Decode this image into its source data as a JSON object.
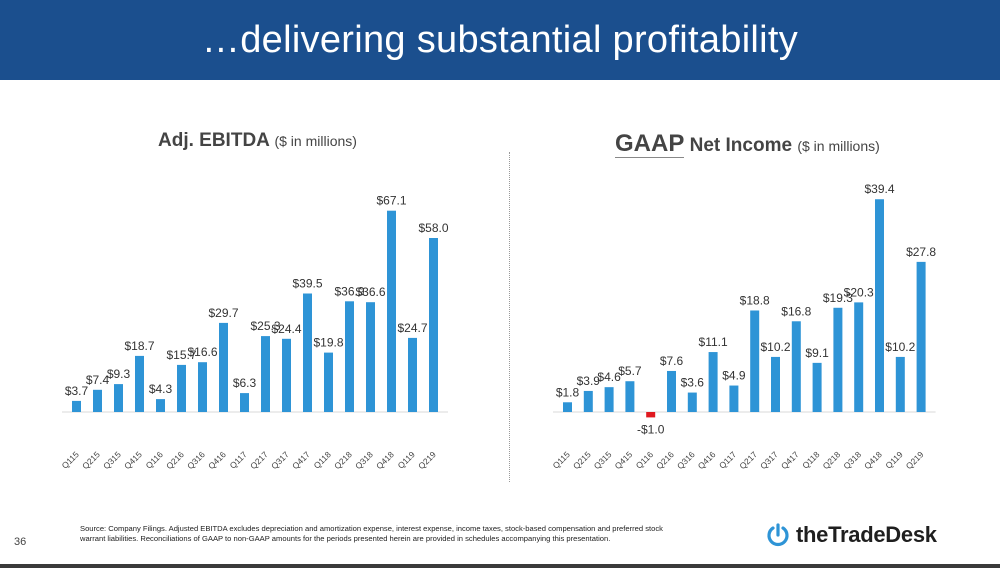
{
  "header": {
    "title": "…delivering substantial profitability"
  },
  "left_title": {
    "main": "Adj. EBITDA",
    "unit": "($ in millions)"
  },
  "right_title": {
    "gaap": "GAAP",
    "main": "Net Income",
    "unit": "($ in millions)"
  },
  "colors": {
    "banner": "#1b4f8e",
    "bar": "#2e94d6",
    "negative_bar": "#e0191f"
  },
  "chart_data": [
    {
      "type": "bar",
      "title": "Adj. EBITDA ($ in millions)",
      "categories": [
        "Q115",
        "Q215",
        "Q315",
        "Q415",
        "Q116",
        "Q216",
        "Q316",
        "Q416",
        "Q117",
        "Q217",
        "Q317",
        "Q417",
        "Q118",
        "Q218",
        "Q318",
        "Q418",
        "Q119",
        "Q219"
      ],
      "values": [
        3.7,
        7.4,
        9.3,
        18.7,
        4.3,
        15.7,
        16.6,
        29.7,
        6.3,
        25.3,
        24.4,
        39.5,
        19.8,
        36.9,
        36.6,
        67.1,
        24.7,
        58.0
      ],
      "labels": [
        "$3.7",
        "$7.4",
        "$9.3",
        "$18.7",
        "$4.3",
        "$15.7",
        "$16.6",
        "$29.7",
        "$6.3",
        "$25.3",
        "$24.4",
        "$39.5",
        "$19.8",
        "$36.9",
        "$36.6",
        "$67.1",
        "$24.7",
        "$58.0"
      ],
      "ylim": [
        0,
        70
      ]
    },
    {
      "type": "bar",
      "title": "GAAP Net Income ($ in millions)",
      "categories": [
        "Q115",
        "Q215",
        "Q315",
        "Q415",
        "Q116",
        "Q216",
        "Q316",
        "Q416",
        "Q117",
        "Q217",
        "Q317",
        "Q417",
        "Q118",
        "Q218",
        "Q318",
        "Q418",
        "Q119",
        "Q219"
      ],
      "values": [
        1.8,
        3.9,
        4.6,
        5.7,
        -1.0,
        7.6,
        3.6,
        11.1,
        4.9,
        18.8,
        10.2,
        16.8,
        9.1,
        19.3,
        20.3,
        39.4,
        10.2,
        27.8
      ],
      "labels": [
        "$1.8",
        "$3.9",
        "$4.6",
        "$5.7",
        "-$1.0",
        "$7.6",
        "$3.6",
        "$11.1",
        "$4.9",
        "$18.8",
        "$10.2",
        "$16.8",
        "$9.1",
        "$19.3",
        "$20.3",
        "$39.4",
        "$10.2",
        "$27.8"
      ],
      "ylim": [
        -2,
        40
      ]
    }
  ],
  "footer": {
    "page_number": "36",
    "source": "Source: Company Filings. Adjusted EBITDA excludes depreciation and amortization expense, interest expense, income taxes, stock-based compensation and preferred stock warrant liabilities. Reconciliations of GAAP to non-GAAP amounts for the periods presented herein are provided in schedules accompanying this presentation.",
    "logo_text": "theTradeDesk"
  }
}
